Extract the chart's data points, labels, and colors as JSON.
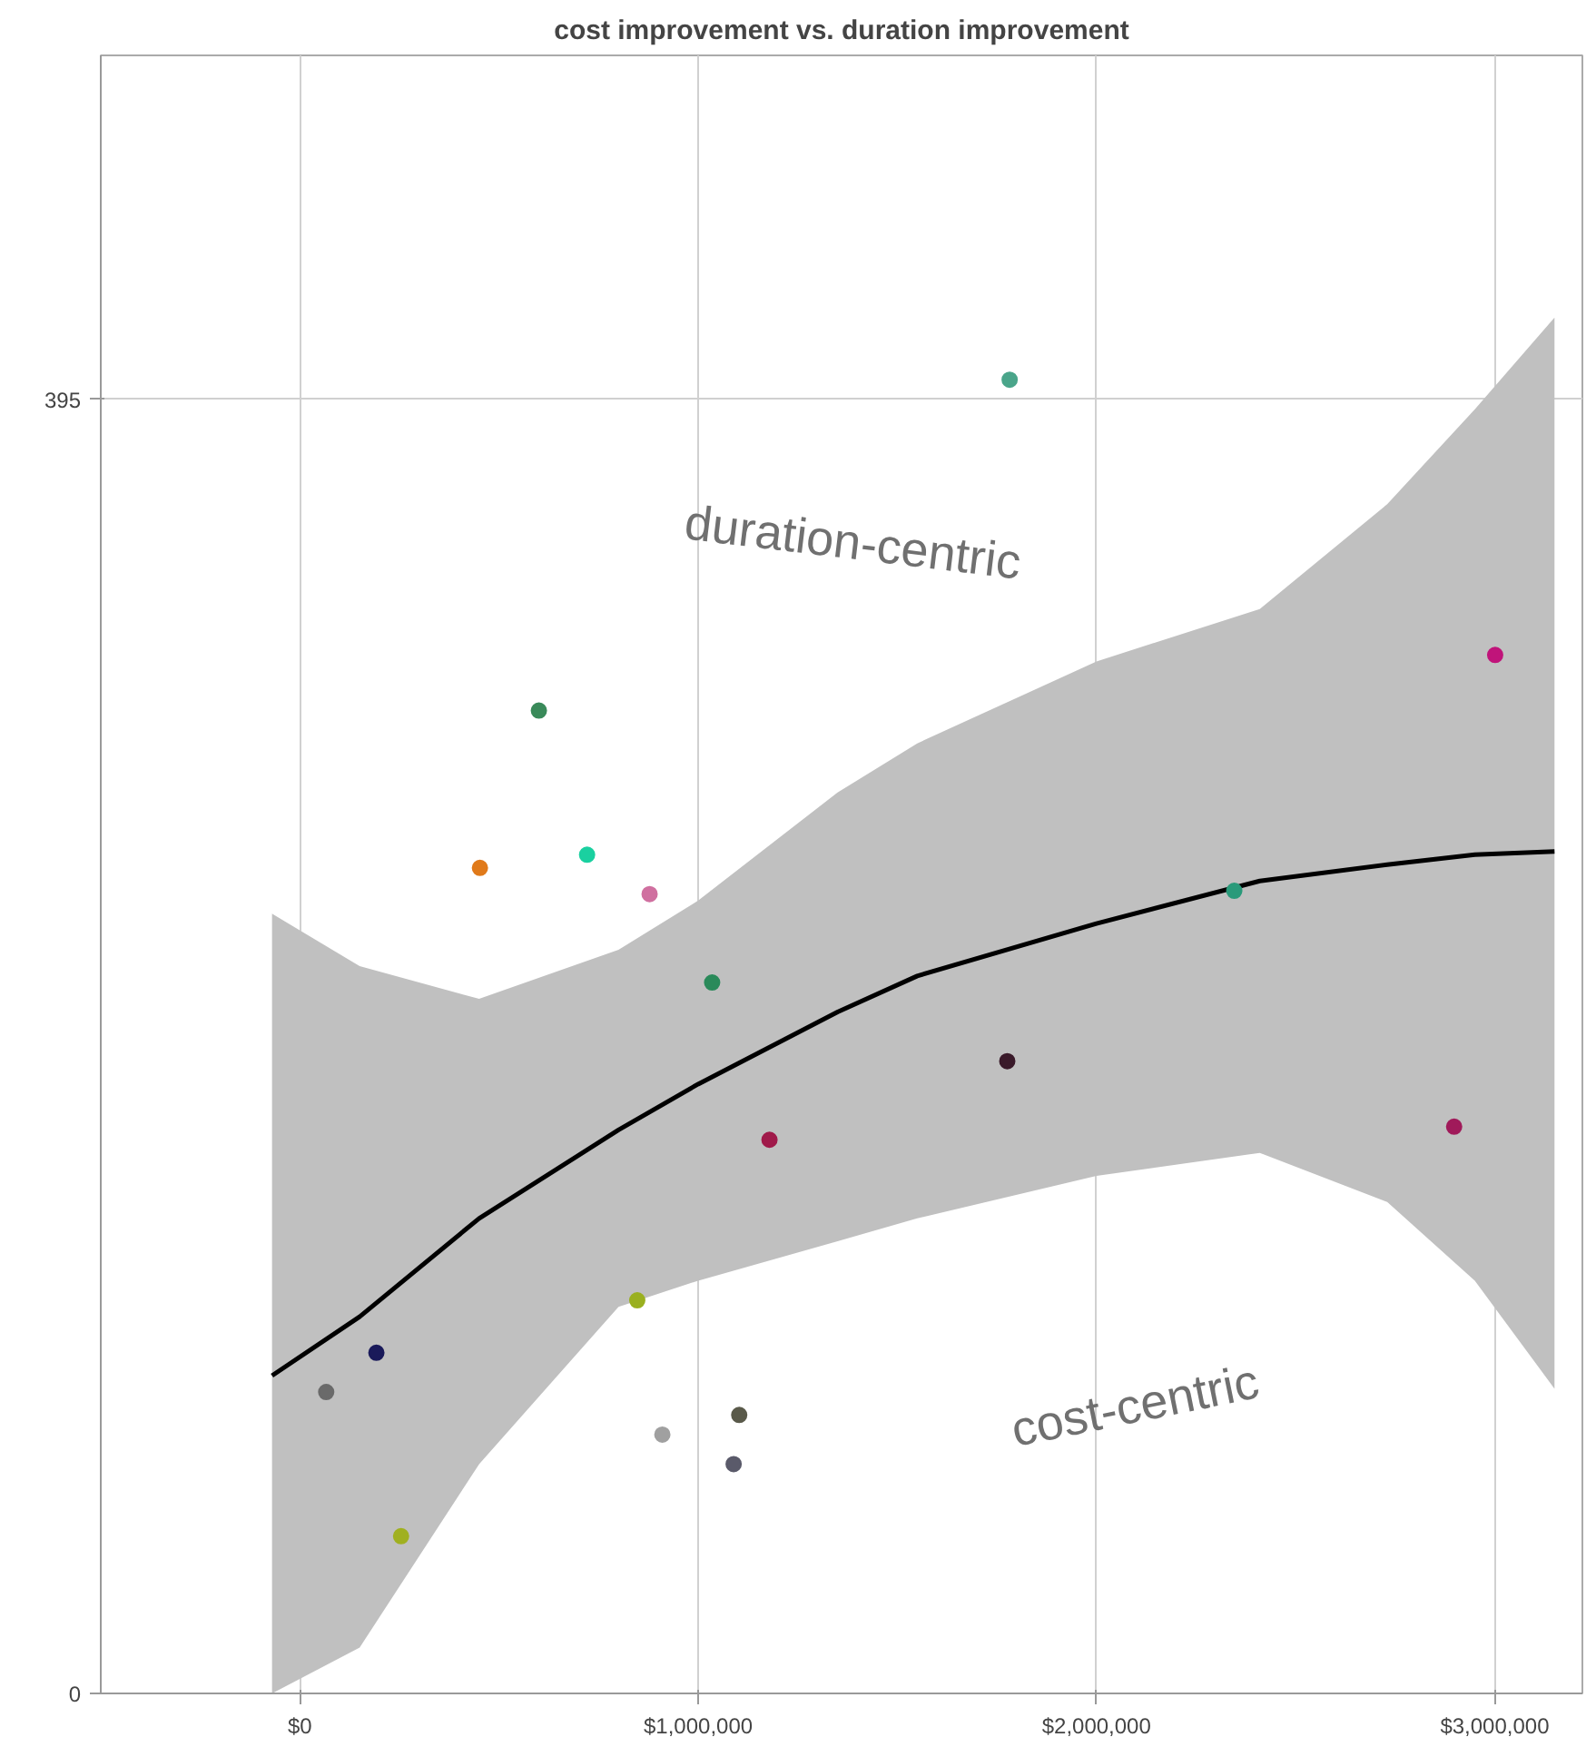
{
  "chart_data": {
    "type": "scatter",
    "title": "cost improvement vs. duration improvement",
    "xlim": [
      -500000,
      3220000
    ],
    "ylim": [
      0,
      500
    ],
    "xticks": [
      {
        "value": 0,
        "label": "$0"
      },
      {
        "value": 1000000,
        "label": "$1,000,000"
      },
      {
        "value": 2000000,
        "label": "$2,000,000"
      },
      {
        "value": 3000000,
        "label": "$3,000,000"
      }
    ],
    "yticks": [
      0,
      395
    ],
    "grid": true,
    "annotations": [
      "duration-centric",
      "cost-centric"
    ],
    "series": [
      {
        "marker": "circle",
        "x": [
          1782000,
          3001000,
          600000,
          452000,
          721000,
          878000,
          1035000,
          2346000,
          1776000,
          1179000,
          2898000,
          847000,
          192000,
          66000,
          1103000,
          910000,
          1089000,
          254000
        ],
        "values": [
          401,
          317,
          300,
          252,
          256,
          244,
          217,
          245,
          193,
          169,
          173,
          120,
          104,
          92,
          85,
          79,
          70,
          48
        ],
        "colors": [
          "#4aa58a",
          "#c0147a",
          "#3a8a5a",
          "#e07a1a",
          "#1ad0a0",
          "#d070a0",
          "#2a8a5a",
          "#2a9a7a",
          "#3a1a2a",
          "#a01a4a",
          "#a01a5a",
          "#9ab020",
          "#1a1a5a",
          "#6a6a6a",
          "#5a5a4a",
          "#a0a0a0",
          "#5a5a6a",
          "#a0b020"
        ]
      },
      {
        "type": "line",
        "color": "#000000",
        "x": [
          -70000,
          150000,
          450000,
          800000,
          1000000,
          1350000,
          1550000,
          2000000,
          2410000,
          2730000,
          2950000,
          3150000
        ],
        "values": [
          97,
          115,
          145,
          172,
          186,
          208,
          219,
          235,
          248,
          253,
          256,
          257
        ],
        "lower": [
          0,
          14,
          70,
          118,
          126,
          138,
          145,
          158,
          165,
          150,
          126,
          93
        ],
        "upper": [
          238,
          222,
          212,
          227,
          242,
          275,
          290,
          315,
          331,
          363,
          392,
          420
        ]
      }
    ]
  }
}
